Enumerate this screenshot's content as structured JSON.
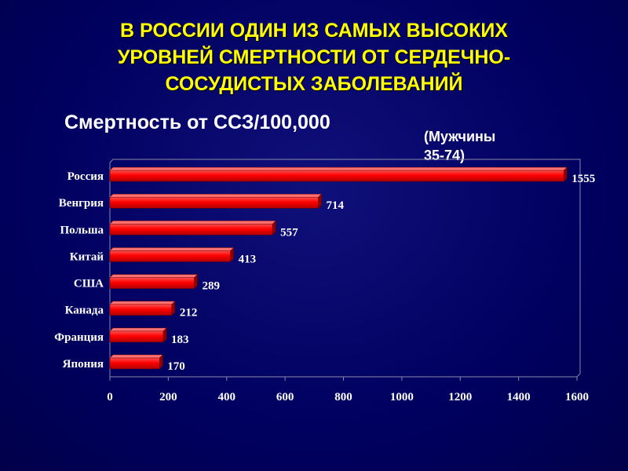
{
  "slide": {
    "title": "В РОССИИ ОДИН ИЗ САМЫХ ВЫСОКИХ\nУРОВНЕЙ СМЕРТНОСТИ  ОТ СЕРДЕЧНО-\nСОСУДИСТЫХ ЗАБОЛЕВАНИЙ",
    "chart_title": "Смертность от ССЗ/100,000",
    "note": "(Мужчины\n35-74)"
  },
  "chart_data": {
    "type": "bar",
    "orientation": "horizontal",
    "title": "Смертность от ССЗ/100,000",
    "subtitle": "(Мужчины 35-74)",
    "categories": [
      "Россия",
      "Венгрия",
      "Польша",
      "Китай",
      "США",
      "Канада",
      "Франция",
      "Япония"
    ],
    "values": [
      1555,
      714,
      557,
      413,
      289,
      212,
      183,
      170
    ],
    "xlim": [
      0,
      1600
    ],
    "xticks": [
      0,
      200,
      400,
      600,
      800,
      1000,
      1200,
      1400,
      1600
    ],
    "grid": false,
    "bar_color": "#ff0000",
    "text_color": "#ffffff",
    "title_color": "#ffff00"
  }
}
